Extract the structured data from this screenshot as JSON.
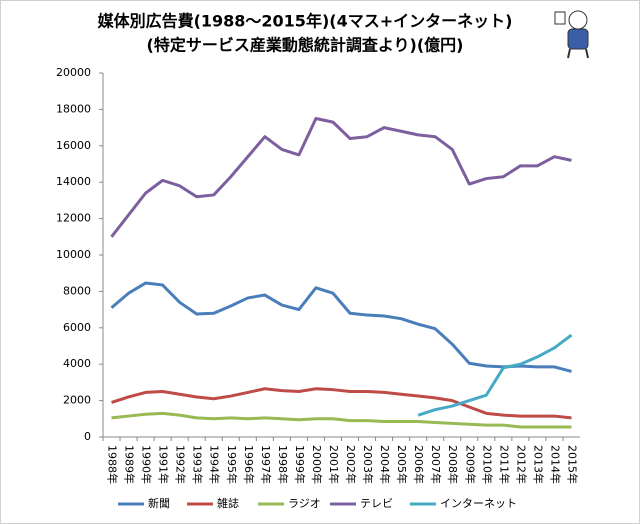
{
  "chart_data": {
    "type": "line",
    "title": "媒体別広告費(1988～2015年)(4マス+インターネット)",
    "subtitle": "(特定サービス産業動態統計調査より)(億円)",
    "categories": [
      "1988年",
      "1989年",
      "1990年",
      "1991年",
      "1992年",
      "1993年",
      "1994年",
      "1995年",
      "1996年",
      "1997年",
      "1998年",
      "1999年",
      "2000年",
      "2001年",
      "2002年",
      "2003年",
      "2004年",
      "2005年",
      "2006年",
      "2007年",
      "2008年",
      "2009年",
      "2010年",
      "2011年",
      "2012年",
      "2013年",
      "2014年",
      "2015年"
    ],
    "series": [
      {
        "name": "新聞",
        "color": "#4a7ebb",
        "values": [
          7100,
          7900,
          8460,
          8350,
          7400,
          6760,
          6800,
          7200,
          7640,
          7800,
          7250,
          7000,
          8200,
          7900,
          6800,
          6700,
          6650,
          6500,
          6200,
          5950,
          5100,
          4050,
          3900,
          3850,
          3900,
          3850,
          3850,
          3600
        ]
      },
      {
        "name": "雑誌",
        "color": "#be4b48",
        "values": [
          1900,
          2200,
          2450,
          2500,
          2350,
          2200,
          2100,
          2250,
          2450,
          2650,
          2550,
          2500,
          2650,
          2600,
          2500,
          2500,
          2450,
          2350,
          2250,
          2150,
          2000,
          1650,
          1300,
          1200,
          1150,
          1150,
          1150,
          1050
        ]
      },
      {
        "name": "ラジオ",
        "color": "#98b954",
        "values": [
          1050,
          1150,
          1250,
          1300,
          1200,
          1050,
          1000,
          1050,
          1000,
          1050,
          1000,
          950,
          1000,
          1000,
          900,
          900,
          850,
          850,
          850,
          800,
          750,
          700,
          650,
          650,
          550,
          550,
          550,
          550
        ]
      },
      {
        "name": "テレビ",
        "color": "#7d5fa0",
        "values": [
          11000,
          12200,
          13400,
          14100,
          13800,
          13200,
          13300,
          14300,
          15400,
          16500,
          15800,
          15500,
          17500,
          17300,
          16400,
          16500,
          17000,
          16800,
          16600,
          16500,
          15800,
          13900,
          14200,
          14300,
          14900,
          14900,
          15400,
          15200
        ]
      },
      {
        "name": "インターネット",
        "color": "#46aac5",
        "values": [
          null,
          null,
          null,
          null,
          null,
          null,
          null,
          null,
          null,
          null,
          null,
          null,
          null,
          null,
          null,
          null,
          null,
          null,
          1200,
          1500,
          1700,
          2000,
          2300,
          3800,
          4000,
          4400,
          4900,
          5600
        ]
      }
    ],
    "ylim": [
      0,
      20000
    ],
    "yticks": [
      0,
      2000,
      4000,
      6000,
      8000,
      10000,
      12000,
      14000,
      16000,
      18000,
      20000
    ]
  }
}
